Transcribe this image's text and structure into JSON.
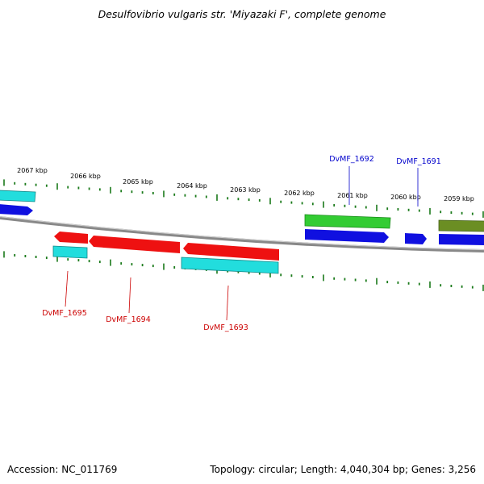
{
  "title": "Desulfovibrio vulgaris str. 'Miyazaki F', complete genome",
  "footer": {
    "accession": "Accession: NC_011769",
    "summary": "Topology: circular; Length: 4,040,304 bp; Genes: 3,256"
  },
  "colors": {
    "backbone": "#888888",
    "tick": "#1a7a1a",
    "forward_label": "#0000cc",
    "reverse_label": "#cc0000",
    "cds_blue": "#1010e0",
    "cds_green": "#33cc33",
    "cds_olive": "#6b8e23",
    "cds_cyan": "#22dddd",
    "cds_red": "#ee1111"
  },
  "kbp_labels": [
    "2067 kbp",
    "2066 kbp",
    "2065 kbp",
    "2064 kbp",
    "2063 kbp",
    "2062 kbp",
    "2061 kbp",
    "2060 kbp",
    "2059 kbp"
  ],
  "gene_labels": {
    "forward": [
      "DvMF_1692",
      "DvMF_1691"
    ],
    "reverse": [
      "DvMF_1695",
      "DvMF_1694",
      "DvMF_1693"
    ]
  }
}
